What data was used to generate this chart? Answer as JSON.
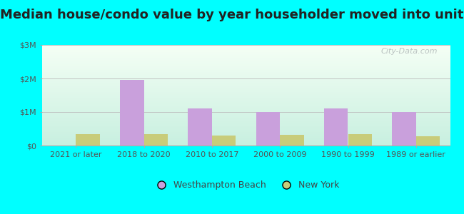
{
  "title": "Median house/condo value by year householder moved into unit",
  "categories": [
    "2021 or later",
    "2018 to 2020",
    "2010 to 2017",
    "2000 to 2009",
    "1990 to 1999",
    "1989 or earlier"
  ],
  "westhampton_values": [
    0,
    1950000,
    1100000,
    1000000,
    1100000,
    1000000
  ],
  "newyork_values": [
    350000,
    330000,
    290000,
    310000,
    340000,
    280000
  ],
  "westhampton_color": "#c9a0dc",
  "newyork_color": "#c8cc7a",
  "ylim": [
    0,
    3000000
  ],
  "yticks": [
    0,
    1000000,
    2000000,
    3000000
  ],
  "ytick_labels": [
    "$0",
    "$1M",
    "$2M",
    "$3M"
  ],
  "background_outer": "#00ffff",
  "watermark": "City-Data.com",
  "legend_westhampton": "Westhampton Beach",
  "legend_newyork": "New York",
  "bar_width": 0.35,
  "title_fontsize": 13,
  "tick_fontsize": 8,
  "legend_fontsize": 9
}
